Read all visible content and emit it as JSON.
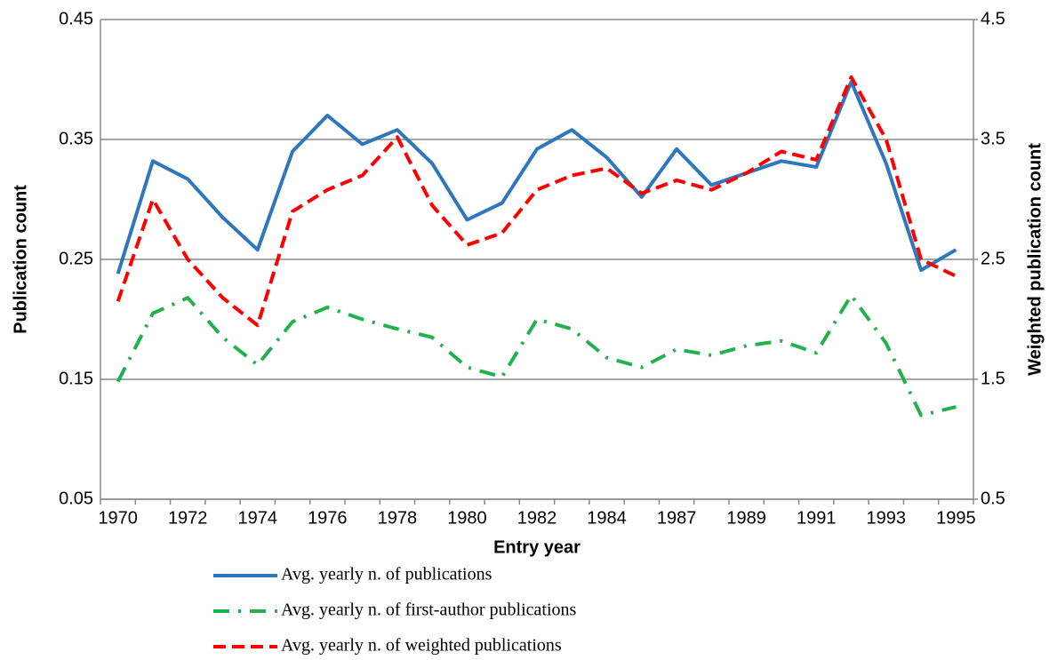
{
  "chart_data": {
    "type": "line",
    "x_label": "Entry year",
    "y_label": "Publication count",
    "y2_label": "Weighted publication count",
    "categories": [
      "1970",
      null,
      "1972",
      null,
      "1974",
      null,
      "1976",
      null,
      "1978",
      null,
      "1980",
      null,
      "1982",
      null,
      "1984",
      null,
      "1987",
      null,
      "1989",
      null,
      "1991",
      null,
      "1993",
      null,
      "1995"
    ],
    "ylim": [
      0.05,
      0.45
    ],
    "yticks": [
      0.05,
      0.15,
      0.25,
      0.35,
      0.45
    ],
    "y2lim": [
      0.5,
      4.5
    ],
    "y2ticks": [
      0.5,
      1.5,
      2.5,
      3.5,
      4.5
    ],
    "grid": true,
    "series": [
      {
        "name": "Avg. yearly n. of publications",
        "color": "#2f77bd",
        "style": "solid",
        "values": [
          0.238,
          0.332,
          0.317,
          0.285,
          0.258,
          0.34,
          0.37,
          0.346,
          0.358,
          0.33,
          0.283,
          0.297,
          0.342,
          0.358,
          0.335,
          0.302,
          0.342,
          0.312,
          0.322,
          0.332,
          0.327,
          0.398,
          0.33,
          0.241,
          0.258
        ]
      },
      {
        "name": "Avg. yearly n. of first-author publications",
        "color": "#22b14c",
        "style": "dashdot",
        "values": [
          0.148,
          0.205,
          0.218,
          0.185,
          0.162,
          0.198,
          0.21,
          0.2,
          0.192,
          0.185,
          0.16,
          0.152,
          0.2,
          0.192,
          0.168,
          0.16,
          0.175,
          0.17,
          0.178,
          0.182,
          0.172,
          0.22,
          0.18,
          0.12,
          0.127
        ]
      },
      {
        "name": "Avg. yearly n. of weighted publications",
        "color": "#ff0000",
        "style": "dashed",
        "axis": "y2",
        "values": [
          2.15,
          3.0,
          2.5,
          2.18,
          1.95,
          2.9,
          3.08,
          3.2,
          3.52,
          2.95,
          2.62,
          2.72,
          3.08,
          3.2,
          3.26,
          3.05,
          3.16,
          3.08,
          3.22,
          3.4,
          3.33,
          4.02,
          3.5,
          2.5,
          2.36
        ]
      }
    ]
  }
}
